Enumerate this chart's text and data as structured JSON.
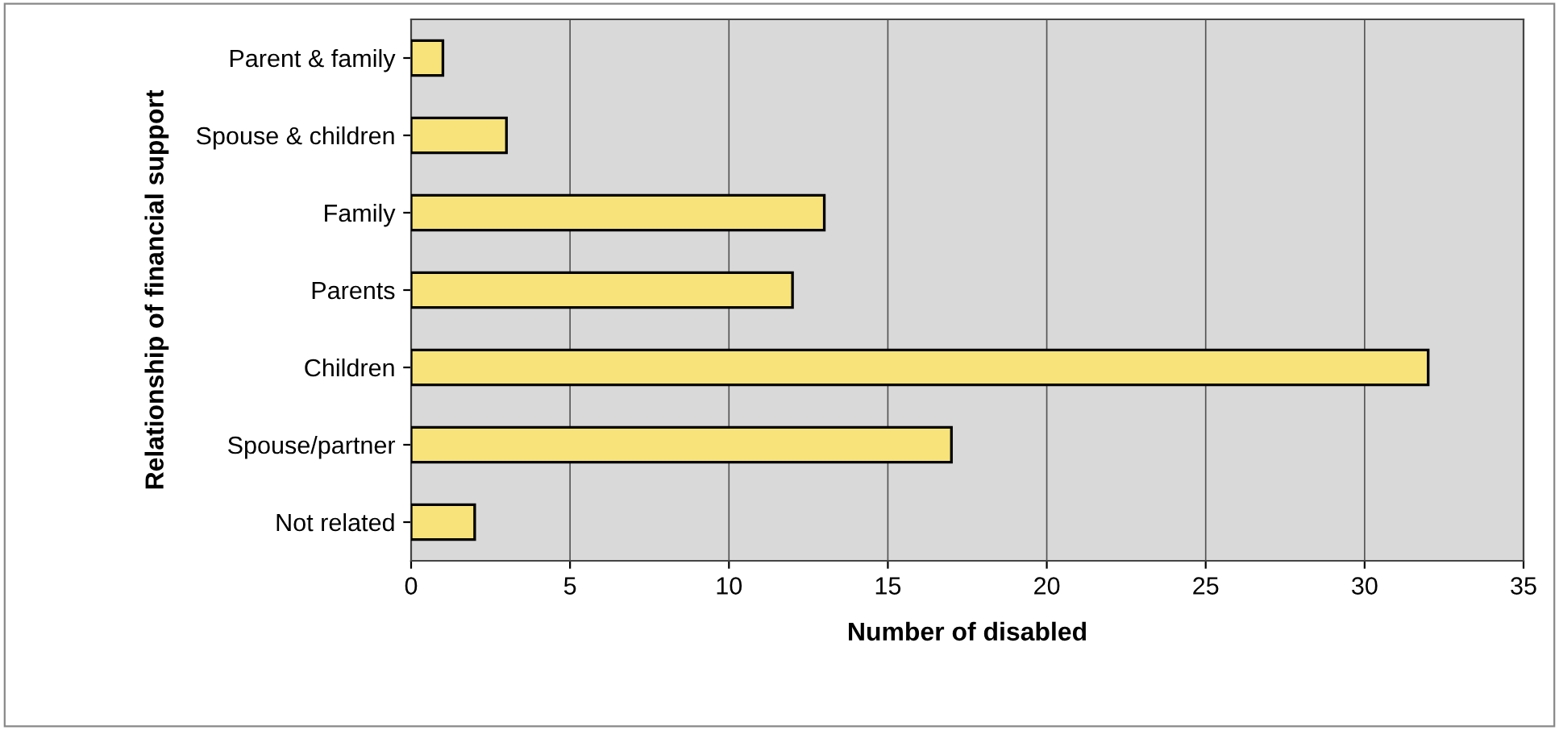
{
  "chart_data": {
    "type": "bar",
    "orientation": "horizontal",
    "xlabel": "Number of disabled",
    "ylabel": "Relationship of financial support",
    "categories": [
      "Parent & family",
      "Spouse & children",
      "Family",
      "Parents",
      "Children",
      "Spouse/partner",
      "Not related"
    ],
    "values": [
      1,
      3,
      13,
      12,
      32,
      17,
      2
    ],
    "color": "#f7e37a",
    "xlim": [
      0,
      35
    ],
    "xticks": [
      0,
      5,
      10,
      15,
      20,
      25,
      30,
      35
    ],
    "grid": "x",
    "legend": false
  }
}
